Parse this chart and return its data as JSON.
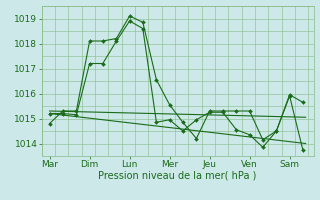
{
  "title": "",
  "xlabel": "Pression niveau de la mer( hPa )",
  "ylabel": "",
  "background_color": "#cce8e8",
  "grid_color": "#88bb88",
  "line_color": "#1a6b1a",
  "x_labels": [
    "Mar",
    "Dim",
    "Lun",
    "Mer",
    "Jeu",
    "Ven",
    "Sam"
  ],
  "x_tick_positions": [
    0,
    1,
    2,
    3,
    4,
    5,
    6
  ],
  "ylim": [
    1013.5,
    1019.5
  ],
  "yticks": [
    1014,
    1015,
    1016,
    1017,
    1018,
    1019
  ],
  "series": [
    {
      "x": [
        0.0,
        0.33,
        0.67,
        1.0,
        1.33,
        1.67,
        2.0,
        2.33,
        2.67,
        3.0,
        3.33,
        3.67,
        4.0,
        4.33,
        4.67,
        5.0,
        5.33,
        5.67,
        6.0,
        6.33
      ],
      "y": [
        1014.8,
        1015.3,
        1015.3,
        1018.1,
        1018.1,
        1018.2,
        1019.1,
        1018.85,
        1016.55,
        1015.55,
        1014.85,
        1014.2,
        1015.3,
        1015.3,
        1015.3,
        1015.3,
        1014.15,
        1014.5,
        1015.95,
        1015.65
      ],
      "has_markers": true
    },
    {
      "x": [
        0.0,
        0.33,
        0.67,
        1.0,
        1.33,
        1.67,
        2.0,
        2.33,
        2.67,
        3.0,
        3.33,
        3.67,
        4.0,
        4.33,
        4.67,
        5.0,
        5.33,
        5.67,
        6.0,
        6.33
      ],
      "y": [
        1015.2,
        1015.2,
        1015.15,
        1017.2,
        1017.2,
        1018.1,
        1018.9,
        1018.6,
        1014.85,
        1014.95,
        1014.5,
        1014.95,
        1015.25,
        1015.25,
        1014.55,
        1014.35,
        1013.85,
        1014.5,
        1015.9,
        1013.75
      ],
      "has_markers": true
    },
    {
      "x": [
        0.0,
        6.4
      ],
      "y": [
        1015.3,
        1015.05
      ],
      "has_markers": false
    },
    {
      "x": [
        0.0,
        6.4
      ],
      "y": [
        1015.2,
        1014.0
      ],
      "has_markers": false
    }
  ]
}
